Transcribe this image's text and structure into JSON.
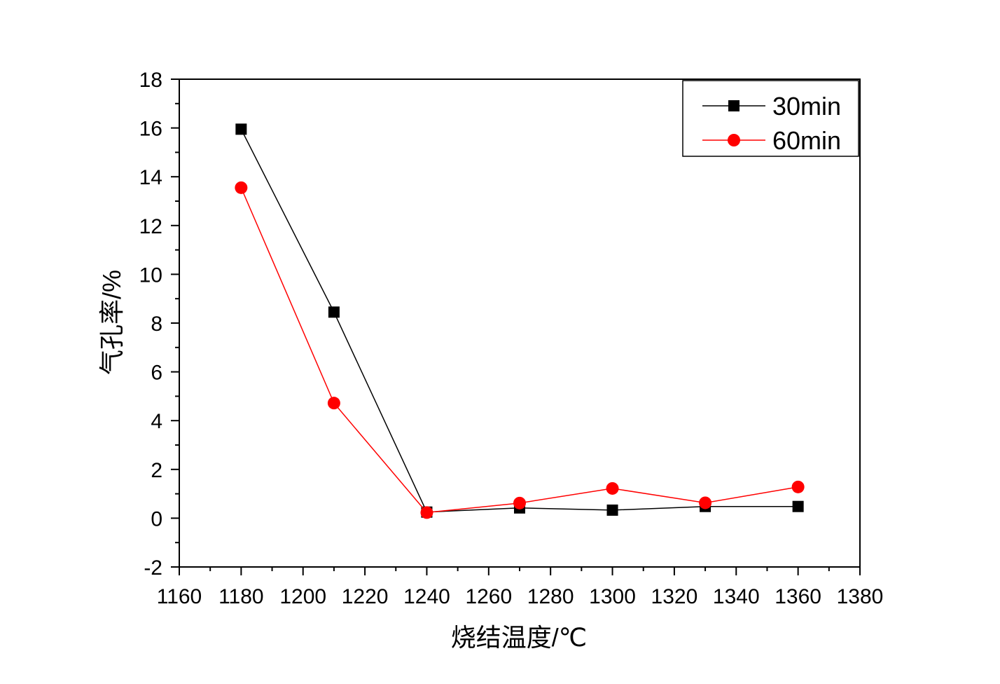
{
  "chart_data": {
    "type": "line",
    "title": "",
    "xlabel": "烧结温度/℃",
    "ylabel": "气孔率/%",
    "xlim": [
      1160,
      1380
    ],
    "ylim": [
      -2,
      18
    ],
    "xticks": [
      1160,
      1180,
      1200,
      1220,
      1240,
      1260,
      1280,
      1300,
      1320,
      1340,
      1360,
      1380
    ],
    "yticks": [
      -2,
      0,
      2,
      4,
      6,
      8,
      10,
      12,
      14,
      16,
      18
    ],
    "x_minor_step": 10,
    "y_minor_step": 1,
    "legend_position": "top-right",
    "grid": false,
    "series": [
      {
        "name": "30min",
        "color": "#000000",
        "marker": "square",
        "x": [
          1180,
          1210,
          1240,
          1270,
          1300,
          1330,
          1360
        ],
        "y": [
          15.95,
          8.45,
          0.25,
          0.42,
          0.33,
          0.48,
          0.48
        ]
      },
      {
        "name": "60min",
        "color": "#ff0000",
        "marker": "circle",
        "x": [
          1180,
          1210,
          1240,
          1270,
          1300,
          1330,
          1360
        ],
        "y": [
          13.55,
          4.72,
          0.23,
          0.62,
          1.22,
          0.63,
          1.28
        ]
      }
    ]
  }
}
